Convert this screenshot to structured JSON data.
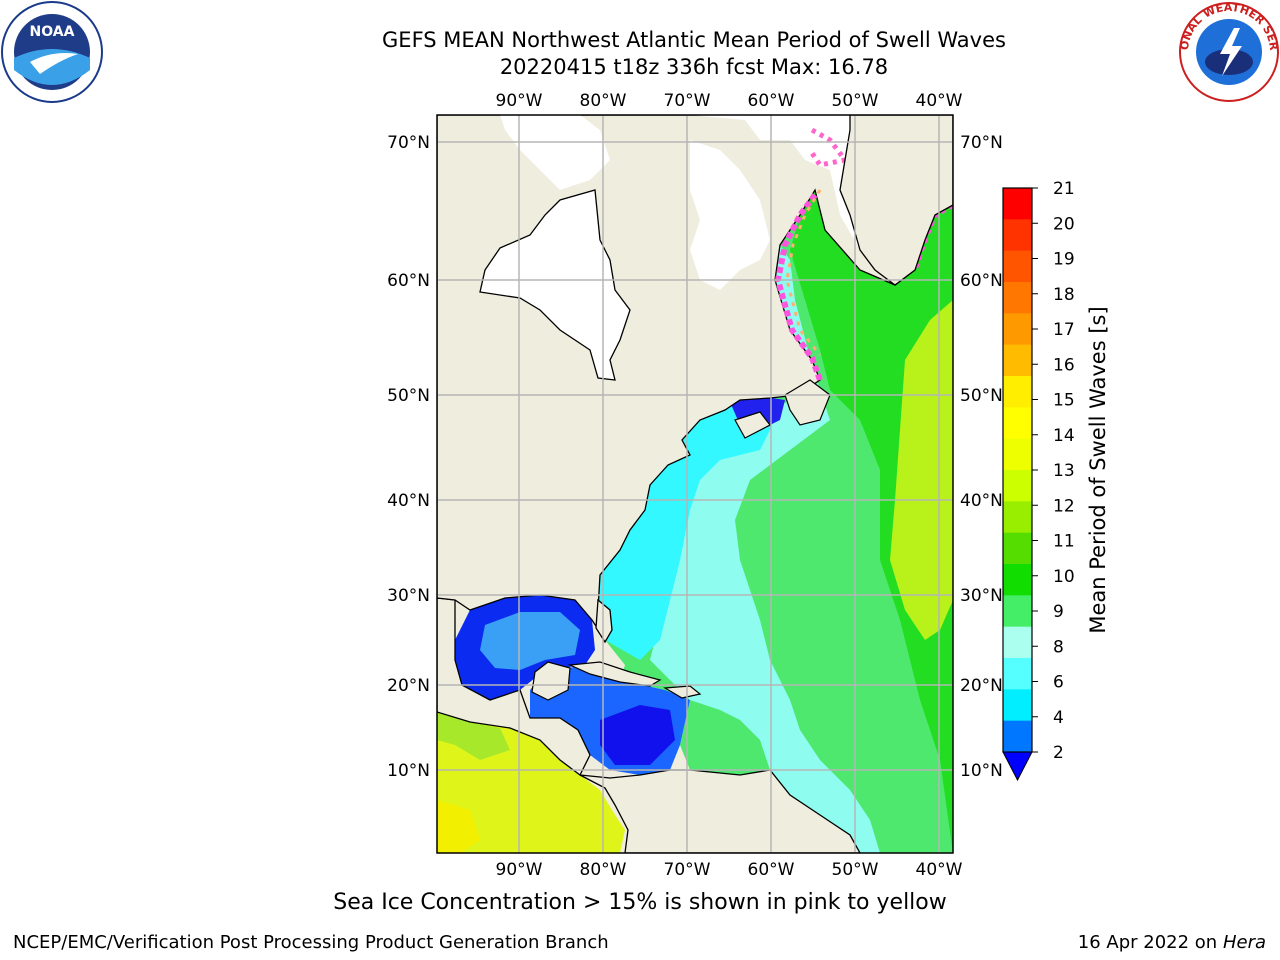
{
  "title": {
    "line1": "GEFS MEAN Northwest Atlantic Mean Period of Swell Waves",
    "line2": "20220415 t18z 336h fcst   Max: 16.78"
  },
  "map": {
    "lon_labels": [
      "90°W",
      "80°W",
      "70°W",
      "60°W",
      "50°W",
      "40°W"
    ],
    "lat_labels": [
      "70°N",
      "60°N",
      "50°N",
      "40°N",
      "30°N",
      "20°N",
      "10°N"
    ],
    "colors": {
      "land": "#efedde",
      "grid": "#b5b5b5",
      "coast": "#000000"
    }
  },
  "colorbar": {
    "label": "Mean Period of Swell Waves [s]",
    "ticks": [
      "21",
      "20",
      "19",
      "18",
      "17",
      "16",
      "15",
      "14",
      "13",
      "12",
      "11",
      "10",
      "9",
      "8",
      "6",
      "4",
      "2"
    ],
    "bin_colors": [
      "#ff0000",
      "#ff3300",
      "#ff5500",
      "#ff7700",
      "#ff9900",
      "#ffbb00",
      "#ffee00",
      "#ffff00",
      "#eeff00",
      "#ccff00",
      "#99ee00",
      "#55dd00",
      "#11dd00",
      "#44ee66",
      "#aaffee",
      "#55ffff",
      "#00eeff",
      "#0077ff"
    ],
    "extend_color": "#0000ff"
  },
  "footnote": "Sea Ice Concentration > 15% is shown in pink to yellow",
  "footer": {
    "left": "NCEP/EMC/Verification Post Processing Product Generation Branch",
    "right_date": "16 Apr 2022 on",
    "right_host": "Hera"
  },
  "logos": {
    "noaa": {
      "text": "NOAA",
      "icon": "noaa-logo-icon"
    },
    "nws": {
      "text": "NATIONAL WEATHER SERVICE",
      "icon": "nws-logo-icon"
    }
  }
}
